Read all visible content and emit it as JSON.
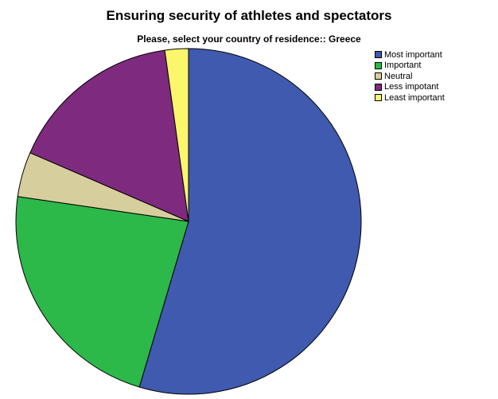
{
  "chart_data": {
    "type": "pie",
    "title": "Ensuring security of athletes and spectators",
    "subtitle": "Please, select your country of residence:: Greece",
    "legend_position": "top-right",
    "start_angle": "12 o'clock",
    "direction": "clockwise",
    "slices": [
      {
        "label": "Most important",
        "value": 54.6,
        "color": "#3f5aae"
      },
      {
        "label": "Important",
        "value": 22.7,
        "color": "#2db84a"
      },
      {
        "label": "Neutral",
        "value": 4.2,
        "color": "#d6cf9d"
      },
      {
        "label": "Less impotant",
        "value": 16.3,
        "color": "#7e2a7e"
      },
      {
        "label": "Least important",
        "value": 2.2,
        "color": "#fbf66c"
      }
    ]
  }
}
